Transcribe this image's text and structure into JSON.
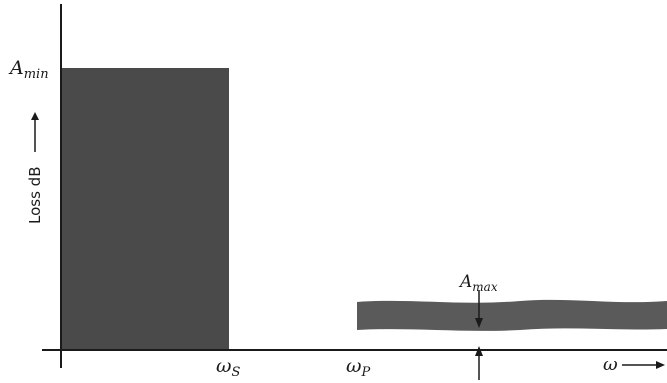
{
  "diagram": {
    "y_axis_label": "Loss dB",
    "a_min": {
      "base": "A",
      "sub": "min"
    },
    "a_max": {
      "base": "A",
      "sub": "max"
    },
    "omega_s": {
      "base": "ω",
      "sub": "S"
    },
    "omega_p": {
      "base": "ω",
      "sub": "P"
    },
    "omega": {
      "base": "ω"
    }
  },
  "colors": {
    "fill": "#4a4a4a",
    "line": "#1a1a1a"
  }
}
